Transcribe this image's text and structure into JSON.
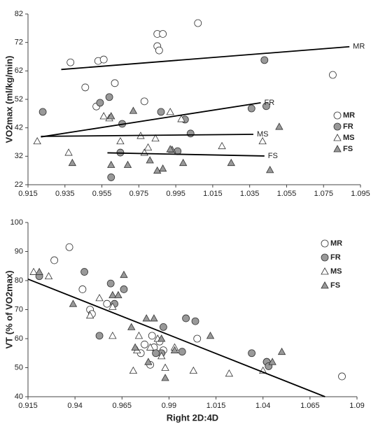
{
  "chart_data": [
    {
      "type": "scatter",
      "ylabel": "VO2max (ml/kg/min)",
      "xlim": [
        0.915,
        1.095
      ],
      "xticks": [
        0.915,
        0.935,
        0.955,
        0.975,
        0.995,
        1.015,
        1.035,
        1.055,
        1.075,
        1.095
      ],
      "ylim": [
        22,
        82
      ],
      "yticks": [
        22,
        32,
        42,
        52,
        62,
        72,
        82
      ],
      "legend": "right",
      "grid": false,
      "series": [
        {
          "name": "MR",
          "color": "#ffffff",
          "marker": "circle",
          "x": [
            0.938,
            0.953,
            0.956,
            0.946,
            0.952,
            0.962,
            0.978,
            0.985,
            0.988,
            0.985,
            0.986,
            1.007,
            1.08
          ],
          "values": [
            65,
            65.5,
            66,
            56.2,
            49.5,
            57.7,
            51.3,
            75,
            75,
            70.7,
            69.2,
            78.8,
            60.6
          ]
        },
        {
          "name": "FR",
          "color": "#999999",
          "marker": "circle",
          "x": [
            0.923,
            0.954,
            0.959,
            0.966,
            0.965,
            0.96,
            0.987,
            1.0,
            1.003,
            0.996,
            1.036,
            1.044,
            1.043
          ],
          "values": [
            47.6,
            50.8,
            52.8,
            43.4,
            33.3,
            24.6,
            47.6,
            44.9,
            40.0,
            33.8,
            48.8,
            49.6,
            65.8
          ]
        },
        {
          "name": "MS",
          "color": "#ffffff",
          "marker": "triangle",
          "x": [
            0.92,
            0.937,
            0.956,
            0.959,
            0.965,
            0.976,
            0.978,
            0.98,
            0.984,
            0.992,
            0.998,
            1.02,
            1.042
          ],
          "values": [
            37.3,
            33.3,
            46.1,
            45.4,
            37.3,
            39.2,
            33.3,
            35.1,
            38.3,
            47.6,
            45.1,
            35.6,
            37.3
          ]
        },
        {
          "name": "FS",
          "color": "#999999",
          "marker": "triangle",
          "x": [
            0.939,
            0.969,
            0.96,
            0.981,
            0.985,
            0.988,
            0.993,
            0.999,
            1.025,
            1.046,
            1.051,
            0.96,
            0.972,
            0.992
          ],
          "values": [
            29.7,
            29,
            29,
            30.6,
            27,
            27.7,
            34.3,
            29.7,
            29.7,
            27.2,
            42.4,
            46.1,
            48,
            34.5
          ]
        }
      ],
      "trendlines": [
        {
          "label": "MR",
          "x": [
            0.933,
            1.089
          ],
          "values": [
            62.5,
            70.5
          ]
        },
        {
          "label": "FR",
          "x": [
            0.922,
            1.041
          ],
          "values": [
            38.8,
            50.8
          ]
        },
        {
          "label": "MS",
          "x": [
            0.922,
            1.037
          ],
          "values": [
            39,
            39.7
          ]
        },
        {
          "label": "FS",
          "x": [
            0.958,
            1.043
          ],
          "values": [
            33.2,
            32.1
          ]
        }
      ]
    },
    {
      "type": "scatter",
      "ylabel": "VT (% of VO2max)",
      "xlabel": "Right 2D:4D",
      "xlim": [
        0.915,
        1.09
      ],
      "xticks": [
        0.915,
        0.94,
        0.965,
        0.99,
        1.015,
        1.04,
        1.065,
        1.09
      ],
      "ylim": [
        40,
        100
      ],
      "yticks": [
        40,
        50,
        60,
        70,
        80,
        90,
        100
      ],
      "legend": "right",
      "grid": false,
      "series": [
        {
          "name": "MR",
          "color": "#ffffff",
          "marker": "circle",
          "x": [
            0.929,
            0.937,
            0.944,
            0.948,
            0.949,
            0.957,
            0.975,
            0.977,
            0.981,
            0.982,
            0.98,
            0.985,
            0.987,
            1.005,
            1.042,
            1.082
          ],
          "values": [
            87,
            91.5,
            77,
            70,
            68.5,
            72,
            55,
            58,
            61,
            57,
            51,
            59,
            56,
            60,
            52,
            47
          ]
        },
        {
          "name": "FR",
          "color": "#999999",
          "marker": "circle",
          "x": [
            0.921,
            0.945,
            0.953,
            0.959,
            0.961,
            0.966,
            0.987,
            0.999,
            1.004,
            0.986,
            0.983,
            0.997,
            1.034,
            1.042,
            1.043
          ],
          "values": [
            81.5,
            83,
            61,
            79,
            72,
            77,
            64,
            67,
            66,
            55,
            55,
            55.5,
            55,
            52,
            50.5
          ]
        },
        {
          "name": "MS",
          "color": "#ffffff",
          "marker": "triangle",
          "x": [
            0.918,
            0.926,
            0.948,
            0.953,
            0.96,
            0.96,
            0.971,
            0.974,
            0.973,
            0.98,
            0.986,
            0.984,
            0.988,
            0.993,
            1.003,
            1.022,
            1.04
          ],
          "values": [
            83,
            81.5,
            68,
            74,
            71,
            61,
            49,
            61,
            56,
            57,
            54,
            60,
            50,
            57,
            49,
            48,
            49
          ]
        },
        {
          "name": "FS",
          "color": "#999999",
          "marker": "triangle",
          "x": [
            0.921,
            0.939,
            0.96,
            0.963,
            0.966,
            0.97,
            0.972,
            0.978,
            0.982,
            0.979,
            0.986,
            0.988,
            0.993,
            1.012,
            1.045,
            1.05
          ],
          "values": [
            83,
            72,
            75,
            75,
            82,
            64,
            57,
            67,
            67,
            52,
            60,
            46.5,
            56,
            61,
            52,
            55.5
          ]
        }
      ],
      "trendlines": [
        {
          "x": [
            0.915,
            1.073
          ],
          "values": [
            80.5,
            40
          ]
        }
      ]
    }
  ]
}
